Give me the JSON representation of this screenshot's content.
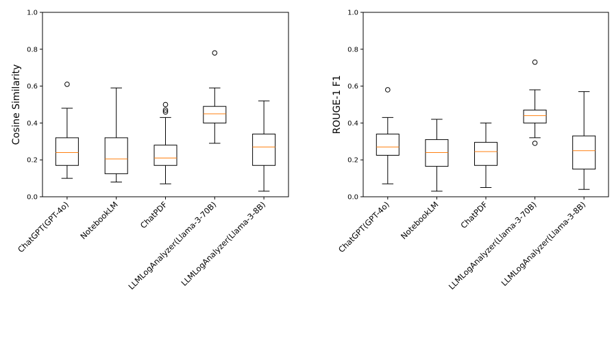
{
  "chart_data": [
    {
      "type": "box",
      "ylabel": "Cosine Similarity",
      "ylim": [
        0,
        1.0
      ],
      "yticks": [
        "0.0",
        "0.2",
        "0.4",
        "0.6",
        "0.8",
        "1.0"
      ],
      "grid": false,
      "categories": [
        "ChatGPT(GPT-4o)",
        "NotebookLM",
        "ChatPDF",
        "LLMLogAnalyzer(Llama-3-70B)",
        "LLMLogAnalyzer(Llama-3-8B)"
      ],
      "boxes": [
        {
          "whislo": 0.1,
          "q1": 0.17,
          "med": 0.24,
          "q3": 0.32,
          "whishi": 0.48,
          "fliers": [
            0.61
          ]
        },
        {
          "whislo": 0.08,
          "q1": 0.125,
          "med": 0.205,
          "q3": 0.32,
          "whishi": 0.59,
          "fliers": []
        },
        {
          "whislo": 0.07,
          "q1": 0.17,
          "med": 0.21,
          "q3": 0.28,
          "whishi": 0.43,
          "fliers": [
            0.46,
            0.47,
            0.5
          ]
        },
        {
          "whislo": 0.29,
          "q1": 0.4,
          "med": 0.45,
          "q3": 0.49,
          "whishi": 0.59,
          "fliers": [
            0.78
          ]
        },
        {
          "whislo": 0.03,
          "q1": 0.17,
          "med": 0.27,
          "q3": 0.34,
          "whishi": 0.52,
          "fliers": []
        }
      ]
    },
    {
      "type": "box",
      "ylabel": "ROUGE-1 F1",
      "ylim": [
        0,
        1.0
      ],
      "yticks": [
        "0.0",
        "0.2",
        "0.4",
        "0.6",
        "0.8",
        "1.0"
      ],
      "grid": false,
      "categories": [
        "ChatGPT(GPT-4o)",
        "NotebookLM",
        "ChatPDF",
        "LLMLogAnalyzer(Llama-3-70B)",
        "LLMLogAnalyzer(Llama-3-8B)"
      ],
      "boxes": [
        {
          "whislo": 0.07,
          "q1": 0.225,
          "med": 0.27,
          "q3": 0.34,
          "whishi": 0.43,
          "fliers": [
            0.58
          ]
        },
        {
          "whislo": 0.03,
          "q1": 0.165,
          "med": 0.24,
          "q3": 0.31,
          "whishi": 0.42,
          "fliers": []
        },
        {
          "whislo": 0.05,
          "q1": 0.17,
          "med": 0.245,
          "q3": 0.295,
          "whishi": 0.4,
          "fliers": []
        },
        {
          "whislo": 0.32,
          "q1": 0.4,
          "med": 0.44,
          "q3": 0.47,
          "whishi": 0.58,
          "fliers": [
            0.73,
            0.29
          ]
        },
        {
          "whislo": 0.04,
          "q1": 0.15,
          "med": 0.25,
          "q3": 0.33,
          "whishi": 0.57,
          "fliers": []
        }
      ]
    }
  ],
  "colors": {
    "median": "#ff7f0e",
    "box": "#000000"
  }
}
